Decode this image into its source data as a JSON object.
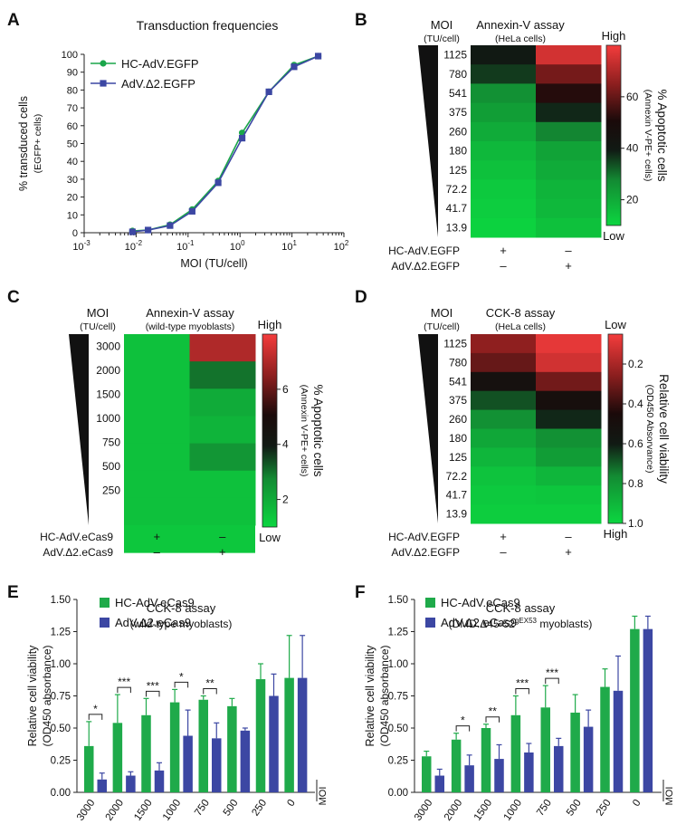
{
  "panels": {
    "A": {
      "letter": "A",
      "chart_data": {
        "type": "line",
        "title": "Transduction frequencies",
        "xlabel": "MOI (TU/cell)",
        "ylabel": "% transduced cells",
        "ylabel2": "(EGFP+ cells)",
        "xscale": "log",
        "xlim": [
          0.001,
          100
        ],
        "ylim": [
          0,
          100
        ],
        "xtick_labels": [
          "10-3",
          "10-2",
          "10-1",
          "100",
          "101",
          "102"
        ],
        "xtick_bases": [
          "10",
          "10",
          "10",
          "10",
          "10",
          "10"
        ],
        "xtick_exps": [
          "-3",
          "-2",
          "-1",
          "0",
          "1",
          "2"
        ],
        "yticks": [
          "0",
          "10",
          "20",
          "30",
          "40",
          "50",
          "60",
          "70",
          "80",
          "90",
          "100"
        ],
        "series": [
          {
            "name": "HC-AdV.EGFP",
            "color": "#1aa64a",
            "marker": "circle",
            "x": [
              0.0085,
              0.017,
              0.045,
              0.12,
              0.38,
              1.1,
              3.6,
              11,
              32
            ],
            "y": [
              1,
              1.5,
              4.5,
              13,
              29,
              56,
              79,
              94,
              99
            ]
          },
          {
            "name": "AdV.Δ2.EGFP",
            "color": "#3c47a3",
            "marker": "square",
            "x": [
              0.0085,
              0.017,
              0.045,
              0.12,
              0.38,
              1.1,
              3.6,
              11,
              32
            ],
            "y": [
              0.5,
              1.5,
              4,
              12,
              28,
              53,
              79,
              93,
              99
            ]
          }
        ]
      }
    },
    "B": {
      "letter": "B",
      "chart_data": {
        "type": "heatmap",
        "title": "Annexin-V assay",
        "subtitle": "(HeLa cells)",
        "row_header": "MOI",
        "row_header2": "(TU/cell)",
        "rows": [
          "1125",
          "780",
          "541",
          "375",
          "260",
          "180",
          "125",
          "72.2",
          "41.7",
          "13.9"
        ],
        "col_labels": [
          "HC-AdV.EGFP",
          "AdV.Δ2.EGFP"
        ],
        "signs": [
          [
            "+",
            "–"
          ],
          [
            "–",
            "+"
          ]
        ],
        "values": [
          [
            40,
            75
          ],
          [
            36,
            62
          ],
          [
            26,
            52
          ],
          [
            23,
            38
          ],
          [
            20,
            28
          ],
          [
            17,
            22
          ],
          [
            15,
            20
          ],
          [
            13,
            18
          ],
          [
            12,
            17
          ],
          [
            11,
            15
          ]
        ],
        "scale_min": 10,
        "scale_max": 80,
        "colorbar_ticks": [
          "20",
          "40",
          "60"
        ],
        "colorbar_top": "High",
        "colorbar_bottom": "Low",
        "colorbar_label": "% Apoptotic cells",
        "colorbar_label2": "(Annexin V-PE+ cells)"
      }
    },
    "C": {
      "letter": "C",
      "chart_data": {
        "type": "heatmap",
        "title": "Annexin-V assay",
        "subtitle": "(wild-type myoblasts)",
        "row_header": "MOI",
        "row_header2": "(TU/cell)",
        "rows": [
          "3000",
          "2000",
          "1500",
          "1000",
          "750",
          "500",
          "250"
        ],
        "col_labels": [
          "HC-AdV.eCas9",
          "AdV.Δ2.eCas9"
        ],
        "signs": [
          [
            "+",
            "–"
          ],
          [
            "–",
            "+"
          ]
        ],
        "values": [
          [
            1.5,
            7.0
          ],
          [
            1.5,
            3.0
          ],
          [
            1.5,
            2.0
          ],
          [
            1.5,
            1.8
          ],
          [
            1.5,
            2.5
          ],
          [
            1.5,
            1.5
          ],
          [
            1.5,
            1.5
          ]
        ],
        "scale_min": 1,
        "scale_max": 8,
        "colorbar_ticks": [
          "2",
          "4",
          "6"
        ],
        "colorbar_top": "High",
        "colorbar_bottom": "Low",
        "colorbar_label": "% Apoptotic cells",
        "colorbar_label2": "(Annexin V-PE+ cells)"
      }
    },
    "D": {
      "letter": "D",
      "chart_data": {
        "type": "heatmap",
        "title": "CCK-8 assay",
        "subtitle": "(HeLa cells)",
        "row_header": "MOI",
        "row_header2": "(TU/cell)",
        "rows": [
          "1125",
          "780",
          "541",
          "375",
          "260",
          "180",
          "125",
          "72.2",
          "41.7",
          "13.9"
        ],
        "col_labels": [
          "HC-AdV.EGFP",
          "AdV.Δ2.EGFP"
        ],
        "signs": [
          [
            "+",
            "–"
          ],
          [
            "–",
            "+"
          ]
        ],
        "values": [
          [
            0.25,
            0.08
          ],
          [
            0.32,
            0.12
          ],
          [
            0.52,
            0.3
          ],
          [
            0.68,
            0.5
          ],
          [
            0.78,
            0.62
          ],
          [
            0.85,
            0.78
          ],
          [
            0.9,
            0.82
          ],
          [
            0.94,
            0.9
          ],
          [
            0.96,
            0.95
          ],
          [
            0.97,
            0.97
          ]
        ],
        "scale_min": 0.05,
        "scale_max": 1.0,
        "colorbar_ticks": [
          "0.2",
          "0.4",
          "0.6",
          "0.8",
          "1.0"
        ],
        "colorbar_top": "Low",
        "colorbar_bottom": "High",
        "colorbar_label": "Relative cell viability",
        "colorbar_label2": "(OD450 Absorvance)"
      }
    },
    "E": {
      "letter": "E",
      "chart_data": {
        "type": "bar",
        "title": "CCK-8 assay",
        "subtitle": "(wild-type myoblasts)",
        "ylabel": "Relative cell viability",
        "ylabel2": "(OD450 absorbance)",
        "ylim": [
          0,
          1.5
        ],
        "yticks": [
          "0.00",
          "0.25",
          "0.50",
          "0.75",
          "1.00",
          "1.25",
          "1.50"
        ],
        "xaxis_label": "MOI",
        "categories": [
          "3000",
          "2000",
          "1500",
          "1000",
          "750",
          "500",
          "250",
          "0"
        ],
        "series": [
          {
            "name": "HC-AdV.eCas9",
            "color": "#1faa4a",
            "values": [
              0.36,
              0.54,
              0.6,
              0.7,
              0.72,
              0.67,
              0.88,
              0.89
            ],
            "errors": [
              0.19,
              0.22,
              0.13,
              0.1,
              0.03,
              0.06,
              0.12,
              0.33
            ]
          },
          {
            "name": "AdV.Δ2.eCas9",
            "color": "#3c47a3",
            "values": [
              0.1,
              0.13,
              0.17,
              0.44,
              0.42,
              0.48,
              0.75,
              0.89
            ],
            "errors": [
              0.05,
              0.03,
              0.06,
              0.2,
              0.12,
              0.02,
              0.17,
              0.33
            ]
          }
        ],
        "significance": [
          {
            "index": 0,
            "label": "*"
          },
          {
            "index": 1,
            "label": "***"
          },
          {
            "index": 2,
            "label": "***"
          },
          {
            "index": 3,
            "label": "*"
          },
          {
            "index": 4,
            "label": "**"
          }
        ]
      }
    },
    "F": {
      "letter": "F",
      "chart_data": {
        "type": "bar",
        "title": "CCK-8 assay",
        "subtitle_pre": "(DMD.Δ45-52",
        "subtitle_sup": "gEX53",
        "subtitle_post": " myoblasts)",
        "ylabel": "Relative cell viability",
        "ylabel2": "(OD450 absorbance)",
        "ylim": [
          0,
          1.5
        ],
        "yticks": [
          "0.00",
          "0.25",
          "0.50",
          "0.75",
          "1.00",
          "1.25",
          "1.50"
        ],
        "xaxis_label": "MOI",
        "categories": [
          "3000",
          "2000",
          "1500",
          "1000",
          "750",
          "500",
          "250",
          "0"
        ],
        "series": [
          {
            "name": "HC-AdV.eCas9",
            "color": "#1faa4a",
            "values": [
              0.28,
              0.41,
              0.5,
              0.6,
              0.66,
              0.62,
              0.82,
              1.27
            ],
            "errors": [
              0.04,
              0.05,
              0.03,
              0.15,
              0.17,
              0.14,
              0.14,
              0.1
            ]
          },
          {
            "name": "AdV.Δ2.eCas9",
            "color": "#3c47a3",
            "values": [
              0.13,
              0.21,
              0.26,
              0.31,
              0.36,
              0.51,
              0.79,
              1.27
            ],
            "errors": [
              0.05,
              0.08,
              0.11,
              0.07,
              0.06,
              0.13,
              0.27,
              0.1
            ]
          }
        ],
        "significance": [
          {
            "index": 1,
            "label": "*"
          },
          {
            "index": 2,
            "label": "**"
          },
          {
            "index": 3,
            "label": "***"
          },
          {
            "index": 4,
            "label": "***"
          }
        ]
      }
    }
  }
}
